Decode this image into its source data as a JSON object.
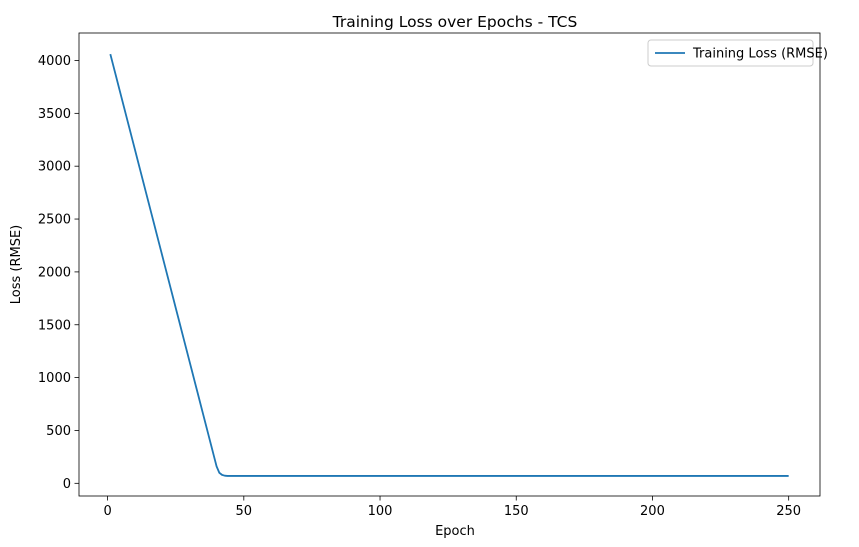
{
  "chart_data": {
    "type": "line",
    "title": "Training Loss over Epochs - TCS",
    "xlabel": "Epoch",
    "ylabel": "Loss (RMSE)",
    "xlim": [
      -10.5,
      261.5
    ],
    "ylim": [
      -120,
      4260
    ],
    "xticks": [
      0,
      50,
      100,
      150,
      200,
      250
    ],
    "yticks": [
      0,
      500,
      1000,
      1500,
      2000,
      2500,
      3000,
      3500,
      4000
    ],
    "grid": false,
    "legend_position": "top-right",
    "colors": {
      "series": "#1f77b4",
      "axes": "#000000",
      "legend_border": "#cccccc"
    },
    "series": [
      {
        "name": "Training Loss (RMSE)",
        "x": [
          1,
          2,
          3,
          4,
          5,
          6,
          7,
          8,
          9,
          10,
          11,
          12,
          13,
          14,
          15,
          16,
          17,
          18,
          19,
          20,
          21,
          22,
          23,
          24,
          25,
          26,
          27,
          28,
          29,
          30,
          31,
          32,
          33,
          34,
          35,
          36,
          37,
          38,
          39,
          40,
          41,
          42,
          43,
          44,
          45,
          50,
          60,
          80,
          100,
          150,
          200,
          250
        ],
        "y": [
          4060,
          3960,
          3860,
          3760,
          3660,
          3560,
          3460,
          3360,
          3260,
          3160,
          3060,
          2960,
          2860,
          2760,
          2660,
          2560,
          2460,
          2360,
          2260,
          2160,
          2060,
          1960,
          1860,
          1760,
          1660,
          1560,
          1460,
          1360,
          1260,
          1160,
          1060,
          960,
          860,
          760,
          660,
          560,
          460,
          360,
          260,
          160,
          100,
          80,
          72,
          70,
          70,
          70,
          70,
          70,
          70,
          70,
          70,
          70
        ]
      }
    ]
  }
}
